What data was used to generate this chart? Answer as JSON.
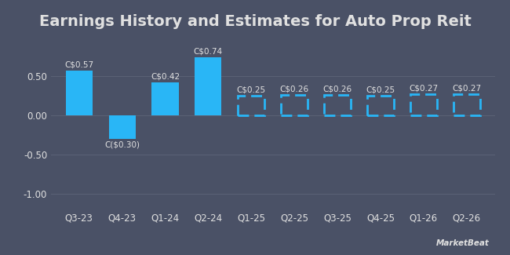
{
  "title": "Earnings History and Estimates for Auto Prop Reit",
  "categories": [
    "Q3-23",
    "Q4-23",
    "Q1-24",
    "Q2-24",
    "Q1-25",
    "Q2-25",
    "Q3-25",
    "Q4-25",
    "Q1-26",
    "Q2-26"
  ],
  "values": [
    0.57,
    -0.3,
    0.42,
    0.74,
    0.25,
    0.26,
    0.26,
    0.25,
    0.27,
    0.27
  ],
  "labels": [
    "C$0.57",
    "C($0.30)",
    "C$0.42",
    "C$0.74",
    "C$0.25",
    "C$0.26",
    "C$0.26",
    "C$0.25",
    "C$0.27",
    "C$0.27"
  ],
  "is_estimate": [
    false,
    false,
    false,
    false,
    true,
    true,
    true,
    true,
    true,
    true
  ],
  "bar_color": "#29b6f6",
  "background_color": "#4a5166",
  "text_color": "#e0e0e0",
  "grid_color": "#5a6175",
  "ylim": [
    -1.2,
    0.92
  ],
  "yticks": [
    -1.0,
    -0.5,
    0.0,
    0.5
  ],
  "ytick_labels": [
    "-1.00",
    "-0.50",
    "0.00",
    "0.50"
  ],
  "title_fontsize": 14,
  "label_fontsize": 7.5,
  "tick_fontsize": 8.5,
  "bar_width": 0.62
}
